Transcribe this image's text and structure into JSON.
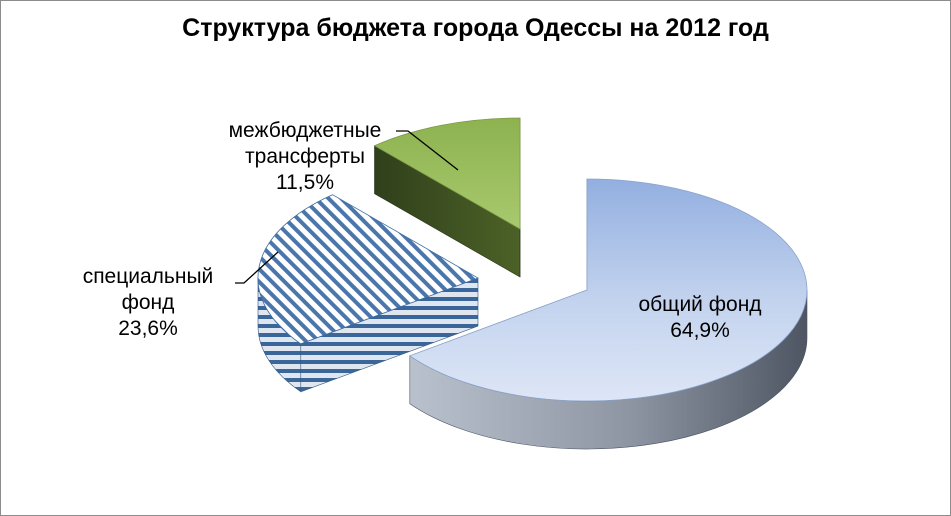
{
  "chart_data": {
    "type": "pie",
    "variant": "3d-exploded",
    "title": "Структура бюджета города Одессы на 2012 год",
    "slices": [
      {
        "name_lines": [
          "общий фонд"
        ],
        "label": "64,9%",
        "value": 64.9,
        "color": "#c6d5ee"
      },
      {
        "name_lines": [
          "специальный",
          "фонд"
        ],
        "label": "23,6%",
        "value": 23.6,
        "color": "#3f6da4",
        "pattern": "diagonal-stripes"
      },
      {
        "name_lines": [
          "межбюджетные",
          "трансферты"
        ],
        "label": "11,5%",
        "value": 11.5,
        "color": "#9bbb59"
      }
    ],
    "legend": "none",
    "grid": false
  }
}
